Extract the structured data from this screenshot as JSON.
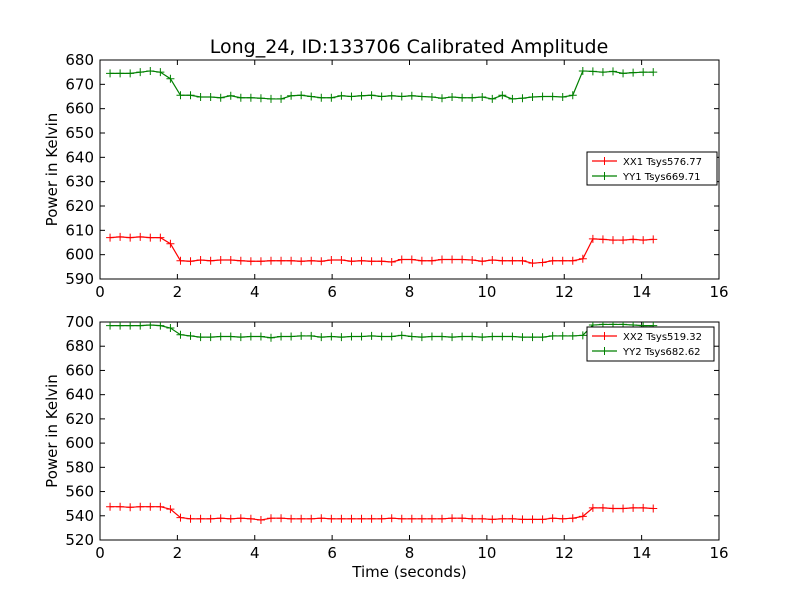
{
  "chart_data": [
    {
      "type": "line",
      "title": "Long_24, ID:133706 Calibrated Amplitude",
      "xlabel": "",
      "ylabel": "Power in Kelvin",
      "xlim": [
        0,
        16
      ],
      "ylim": [
        590,
        680
      ],
      "xticks": [
        0,
        2,
        4,
        6,
        8,
        10,
        12,
        14,
        16
      ],
      "yticks": [
        590,
        600,
        610,
        620,
        630,
        640,
        650,
        660,
        670,
        680
      ],
      "legend_position": "center-right",
      "grid": false,
      "x": [
        0.26,
        0.52,
        0.78,
        1.04,
        1.3,
        1.56,
        1.82,
        2.08,
        2.34,
        2.6,
        2.86,
        3.12,
        3.38,
        3.64,
        3.9,
        4.16,
        4.42,
        4.68,
        4.94,
        5.2,
        5.46,
        5.72,
        5.98,
        6.24,
        6.5,
        6.76,
        7.02,
        7.28,
        7.54,
        7.8,
        8.06,
        8.32,
        8.58,
        8.84,
        9.1,
        9.36,
        9.62,
        9.88,
        10.14,
        10.4,
        10.66,
        10.92,
        11.18,
        11.44,
        11.7,
        11.96,
        12.22,
        12.48,
        12.74,
        13.0,
        13.26,
        13.52,
        13.78,
        14.04,
        14.3
      ],
      "series": [
        {
          "name": "XX1 Tsys576.77",
          "color": "#ff0000",
          "values": [
            607,
            607.3,
            607,
            607.3,
            607,
            607,
            604.5,
            597.5,
            597.3,
            597.8,
            597.5,
            597.8,
            597.8,
            597.5,
            597.3,
            597.3,
            597.5,
            597.5,
            597.5,
            597.3,
            597.5,
            597.3,
            597.8,
            597.8,
            597.3,
            597.5,
            597.3,
            597.3,
            597.0,
            598.0,
            598.0,
            597.5,
            597.5,
            598.0,
            598.0,
            598.0,
            597.8,
            597.3,
            597.8,
            597.5,
            597.5,
            597.5,
            596.5,
            596.8,
            597.5,
            597.5,
            597.5,
            598.3,
            606.5,
            606.3,
            606.0,
            606.0,
            606.3,
            606.0,
            606.3
          ]
        },
        {
          "name": "YY1 Tsys669.71",
          "color": "#008000",
          "values": [
            674.5,
            674.5,
            674.5,
            675.0,
            675.5,
            675.0,
            672.3,
            665.5,
            665.5,
            664.8,
            664.8,
            664.5,
            665.3,
            664.5,
            664.5,
            664.3,
            664.0,
            664.0,
            665.3,
            665.5,
            665.0,
            664.5,
            664.5,
            665.3,
            665.0,
            665.3,
            665.5,
            665.0,
            665.3,
            665.0,
            665.3,
            665.0,
            664.8,
            664.3,
            664.8,
            664.5,
            664.5,
            664.8,
            664.0,
            665.5,
            664.0,
            664.3,
            664.8,
            665.0,
            665.0,
            664.8,
            665.5,
            675.5,
            675.3,
            675.0,
            675.3,
            674.5,
            674.8,
            675.0,
            675.0
          ]
        }
      ]
    },
    {
      "type": "line",
      "title": "",
      "xlabel": "Time (seconds)",
      "ylabel": "Power in Kelvin",
      "xlim": [
        0,
        16
      ],
      "ylim": [
        520,
        700
      ],
      "xticks": [
        0,
        2,
        4,
        6,
        8,
        10,
        12,
        14,
        16
      ],
      "yticks": [
        520,
        540,
        560,
        580,
        600,
        620,
        640,
        660,
        680,
        700
      ],
      "legend_position": "top-right",
      "grid": false,
      "x": [
        0.26,
        0.52,
        0.78,
        1.04,
        1.3,
        1.56,
        1.82,
        2.08,
        2.34,
        2.6,
        2.86,
        3.12,
        3.38,
        3.64,
        3.9,
        4.16,
        4.42,
        4.68,
        4.94,
        5.2,
        5.46,
        5.72,
        5.98,
        6.24,
        6.5,
        6.76,
        7.02,
        7.28,
        7.54,
        7.8,
        8.06,
        8.32,
        8.58,
        8.84,
        9.1,
        9.36,
        9.62,
        9.88,
        10.14,
        10.4,
        10.66,
        10.92,
        11.18,
        11.44,
        11.7,
        11.96,
        12.22,
        12.48,
        12.74,
        13.0,
        13.26,
        13.52,
        13.78,
        14.04,
        14.3
      ],
      "series": [
        {
          "name": "XX2 Tsys519.32",
          "color": "#ff0000",
          "values": [
            547.5,
            547.5,
            547.0,
            547.5,
            547.5,
            547.5,
            545.5,
            538.5,
            537.5,
            537.5,
            537.5,
            538.0,
            537.5,
            538.0,
            537.5,
            536.5,
            538.0,
            538.0,
            537.5,
            537.5,
            537.5,
            538.0,
            537.5,
            537.5,
            537.5,
            537.5,
            537.5,
            537.5,
            538.0,
            537.5,
            537.5,
            537.5,
            537.5,
            537.5,
            538.0,
            538.0,
            537.5,
            537.5,
            537.0,
            537.5,
            537.5,
            537.0,
            537.0,
            537.0,
            538.0,
            537.5,
            538.0,
            539.5,
            546.5,
            546.5,
            546.0,
            546.0,
            546.5,
            546.5,
            546.0
          ]
        },
        {
          "name": "YY2 Tsys682.62",
          "color": "#008000",
          "values": [
            697.0,
            697.0,
            697.0,
            697.0,
            697.5,
            697.0,
            695.0,
            689.5,
            688.5,
            687.5,
            687.5,
            688.0,
            688.0,
            687.5,
            688.0,
            688.0,
            687.0,
            688.0,
            688.0,
            688.5,
            688.5,
            687.5,
            688.0,
            687.5,
            688.0,
            688.0,
            688.5,
            688.0,
            688.0,
            689.0,
            688.0,
            687.5,
            688.0,
            688.0,
            687.5,
            688.0,
            688.0,
            687.5,
            688.0,
            688.0,
            688.0,
            687.5,
            687.5,
            687.5,
            688.5,
            688.5,
            688.5,
            689.0,
            697.5,
            698.0,
            698.0,
            698.0,
            697.5,
            697.0,
            697.0
          ]
        }
      ]
    }
  ]
}
